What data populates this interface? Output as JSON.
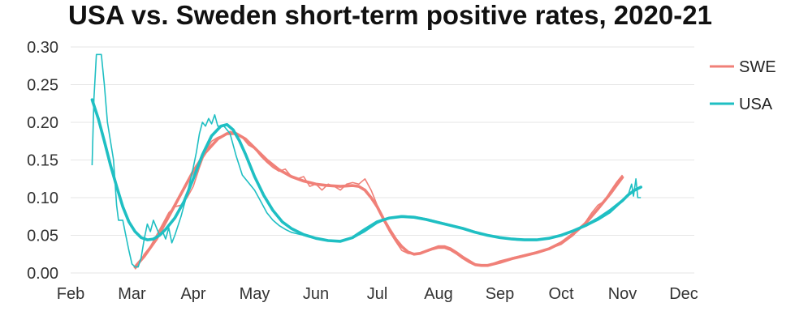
{
  "chart_data": {
    "type": "line",
    "title": "USA vs. Sweden short-term positive rates, 2020-21",
    "xlabel": "",
    "ylabel": "",
    "x_ticks": [
      "Feb",
      "Mar",
      "Apr",
      "May",
      "Jun",
      "Jul",
      "Aug",
      "Sep",
      "Oct",
      "Nov",
      "Dec"
    ],
    "x_range": [
      0,
      10
    ],
    "y_ticks": [
      "0.00",
      "0.05",
      "0.10",
      "0.15",
      "0.20",
      "0.25",
      "0.30"
    ],
    "ylim": [
      0,
      0.3
    ],
    "grid": "horizontal",
    "legend": {
      "placement": "right",
      "entries": [
        "SWE",
        "USA"
      ]
    },
    "series": [
      {
        "name": "SWE",
        "color": "#F08078",
        "raw": [
          [
            1.05,
            0.005
          ],
          [
            1.1,
            0.01
          ],
          [
            1.2,
            0.025
          ],
          [
            1.3,
            0.035
          ],
          [
            1.4,
            0.05
          ],
          [
            1.5,
            0.065
          ],
          [
            1.6,
            0.08
          ],
          [
            1.7,
            0.088
          ],
          [
            1.8,
            0.09
          ],
          [
            1.9,
            0.1
          ],
          [
            2.0,
            0.115
          ],
          [
            2.1,
            0.14
          ],
          [
            2.2,
            0.162
          ],
          [
            2.3,
            0.175
          ],
          [
            2.4,
            0.18
          ],
          [
            2.5,
            0.183
          ],
          [
            2.6,
            0.188
          ],
          [
            2.7,
            0.185
          ],
          [
            2.8,
            0.18
          ],
          [
            2.9,
            0.17
          ],
          [
            3.0,
            0.165
          ],
          [
            3.1,
            0.155
          ],
          [
            3.2,
            0.147
          ],
          [
            3.3,
            0.14
          ],
          [
            3.4,
            0.135
          ],
          [
            3.5,
            0.138
          ],
          [
            3.6,
            0.128
          ],
          [
            3.7,
            0.125
          ],
          [
            3.8,
            0.128
          ],
          [
            3.9,
            0.115
          ],
          [
            4.0,
            0.118
          ],
          [
            4.1,
            0.11
          ],
          [
            4.2,
            0.118
          ],
          [
            4.3,
            0.115
          ],
          [
            4.4,
            0.11
          ],
          [
            4.5,
            0.118
          ],
          [
            4.6,
            0.12
          ],
          [
            4.7,
            0.118
          ],
          [
            4.8,
            0.125
          ],
          [
            4.9,
            0.11
          ],
          [
            5.0,
            0.09
          ],
          [
            5.1,
            0.07
          ],
          [
            5.2,
            0.055
          ],
          [
            5.3,
            0.042
          ],
          [
            5.4,
            0.03
          ],
          [
            5.5,
            0.026
          ],
          [
            5.6,
            0.025
          ],
          [
            5.7,
            0.027
          ],
          [
            5.8,
            0.03
          ],
          [
            5.9,
            0.033
          ],
          [
            6.0,
            0.036
          ],
          [
            6.1,
            0.036
          ],
          [
            6.2,
            0.033
          ],
          [
            6.3,
            0.028
          ],
          [
            6.4,
            0.022
          ],
          [
            6.5,
            0.017
          ],
          [
            6.6,
            0.012
          ],
          [
            6.7,
            0.01
          ],
          [
            6.8,
            0.011
          ],
          [
            6.9,
            0.013
          ],
          [
            7.0,
            0.016
          ],
          [
            7.2,
            0.02
          ],
          [
            7.4,
            0.024
          ],
          [
            7.6,
            0.028
          ],
          [
            7.8,
            0.032
          ],
          [
            8.0,
            0.038
          ],
          [
            8.2,
            0.05
          ],
          [
            8.4,
            0.068
          ],
          [
            8.5,
            0.08
          ],
          [
            8.6,
            0.09
          ],
          [
            8.7,
            0.095
          ],
          [
            8.8,
            0.108
          ],
          [
            8.9,
            0.12
          ],
          [
            9.0,
            0.13
          ]
        ],
        "smooth": [
          [
            1.05,
            0.008
          ],
          [
            1.2,
            0.022
          ],
          [
            1.4,
            0.045
          ],
          [
            1.6,
            0.075
          ],
          [
            1.8,
            0.105
          ],
          [
            2.0,
            0.135
          ],
          [
            2.2,
            0.16
          ],
          [
            2.4,
            0.178
          ],
          [
            2.55,
            0.185
          ],
          [
            2.7,
            0.185
          ],
          [
            2.85,
            0.178
          ],
          [
            3.0,
            0.166
          ],
          [
            3.2,
            0.15
          ],
          [
            3.4,
            0.137
          ],
          [
            3.6,
            0.128
          ],
          [
            3.8,
            0.122
          ],
          [
            4.0,
            0.118
          ],
          [
            4.2,
            0.116
          ],
          [
            4.4,
            0.115
          ],
          [
            4.6,
            0.116
          ],
          [
            4.7,
            0.115
          ],
          [
            4.8,
            0.11
          ],
          [
            4.9,
            0.1
          ],
          [
            5.0,
            0.088
          ],
          [
            5.1,
            0.072
          ],
          [
            5.2,
            0.058
          ],
          [
            5.3,
            0.045
          ],
          [
            5.4,
            0.035
          ],
          [
            5.5,
            0.028
          ],
          [
            5.6,
            0.025
          ],
          [
            5.7,
            0.026
          ],
          [
            5.8,
            0.029
          ],
          [
            5.9,
            0.032
          ],
          [
            6.0,
            0.034
          ],
          [
            6.1,
            0.034
          ],
          [
            6.2,
            0.031
          ],
          [
            6.3,
            0.026
          ],
          [
            6.4,
            0.02
          ],
          [
            6.5,
            0.015
          ],
          [
            6.6,
            0.011
          ],
          [
            6.7,
            0.01
          ],
          [
            6.8,
            0.01
          ],
          [
            7.0,
            0.014
          ],
          [
            7.2,
            0.019
          ],
          [
            7.4,
            0.023
          ],
          [
            7.6,
            0.027
          ],
          [
            7.8,
            0.032
          ],
          [
            8.0,
            0.04
          ],
          [
            8.2,
            0.052
          ],
          [
            8.4,
            0.066
          ],
          [
            8.6,
            0.085
          ],
          [
            8.8,
            0.105
          ],
          [
            9.0,
            0.127
          ]
        ]
      },
      {
        "name": "USA",
        "color": "#1FBFC3",
        "raw": [
          [
            0.35,
            0.143
          ],
          [
            0.38,
            0.232
          ],
          [
            0.42,
            0.29
          ],
          [
            0.5,
            0.29
          ],
          [
            0.55,
            0.25
          ],
          [
            0.6,
            0.2
          ],
          [
            0.7,
            0.15
          ],
          [
            0.75,
            0.09
          ],
          [
            0.78,
            0.07
          ],
          [
            0.85,
            0.07
          ],
          [
            0.9,
            0.05
          ],
          [
            0.95,
            0.03
          ],
          [
            1.0,
            0.012
          ],
          [
            1.05,
            0.008
          ],
          [
            1.1,
            0.008
          ],
          [
            1.15,
            0.02
          ],
          [
            1.2,
            0.045
          ],
          [
            1.25,
            0.065
          ],
          [
            1.3,
            0.055
          ],
          [
            1.35,
            0.07
          ],
          [
            1.4,
            0.06
          ],
          [
            1.45,
            0.05
          ],
          [
            1.5,
            0.055
          ],
          [
            1.55,
            0.045
          ],
          [
            1.6,
            0.06
          ],
          [
            1.65,
            0.04
          ],
          [
            1.7,
            0.05
          ],
          [
            1.8,
            0.075
          ],
          [
            1.9,
            0.105
          ],
          [
            2.0,
            0.14
          ],
          [
            2.05,
            0.16
          ],
          [
            2.1,
            0.185
          ],
          [
            2.15,
            0.2
          ],
          [
            2.2,
            0.195
          ],
          [
            2.25,
            0.205
          ],
          [
            2.3,
            0.198
          ],
          [
            2.35,
            0.21
          ],
          [
            2.4,
            0.195
          ],
          [
            2.5,
            0.195
          ],
          [
            2.6,
            0.185
          ],
          [
            2.7,
            0.155
          ],
          [
            2.8,
            0.13
          ],
          [
            2.9,
            0.12
          ],
          [
            3.0,
            0.11
          ],
          [
            3.1,
            0.095
          ],
          [
            3.2,
            0.08
          ],
          [
            3.3,
            0.07
          ],
          [
            3.4,
            0.063
          ],
          [
            3.5,
            0.058
          ],
          [
            3.6,
            0.054
          ],
          [
            3.8,
            0.05
          ],
          [
            4.0,
            0.046
          ],
          [
            4.2,
            0.043
          ],
          [
            4.4,
            0.042
          ],
          [
            4.6,
            0.046
          ],
          [
            4.8,
            0.055
          ],
          [
            5.0,
            0.066
          ],
          [
            5.2,
            0.073
          ],
          [
            5.4,
            0.076
          ],
          [
            5.6,
            0.075
          ],
          [
            5.8,
            0.072
          ],
          [
            6.0,
            0.068
          ],
          [
            6.2,
            0.064
          ],
          [
            6.4,
            0.06
          ],
          [
            6.6,
            0.055
          ],
          [
            6.8,
            0.05
          ],
          [
            7.0,
            0.047
          ],
          [
            7.2,
            0.045
          ],
          [
            7.4,
            0.044
          ],
          [
            7.6,
            0.044
          ],
          [
            7.8,
            0.046
          ],
          [
            8.0,
            0.05
          ],
          [
            8.2,
            0.056
          ],
          [
            8.4,
            0.062
          ],
          [
            8.6,
            0.07
          ],
          [
            8.8,
            0.08
          ],
          [
            9.0,
            0.095
          ],
          [
            9.1,
            0.105
          ],
          [
            9.15,
            0.118
          ],
          [
            9.18,
            0.102
          ],
          [
            9.22,
            0.125
          ],
          [
            9.25,
            0.1
          ],
          [
            9.3,
            0.1
          ]
        ],
        "smooth": [
          [
            0.35,
            0.23
          ],
          [
            0.45,
            0.205
          ],
          [
            0.55,
            0.175
          ],
          [
            0.65,
            0.143
          ],
          [
            0.75,
            0.115
          ],
          [
            0.85,
            0.088
          ],
          [
            0.95,
            0.068
          ],
          [
            1.05,
            0.055
          ],
          [
            1.15,
            0.047
          ],
          [
            1.25,
            0.044
          ],
          [
            1.35,
            0.045
          ],
          [
            1.45,
            0.05
          ],
          [
            1.55,
            0.058
          ],
          [
            1.7,
            0.073
          ],
          [
            1.85,
            0.095
          ],
          [
            2.0,
            0.125
          ],
          [
            2.15,
            0.157
          ],
          [
            2.3,
            0.182
          ],
          [
            2.45,
            0.195
          ],
          [
            2.55,
            0.197
          ],
          [
            2.65,
            0.19
          ],
          [
            2.75,
            0.176
          ],
          [
            2.85,
            0.158
          ],
          [
            3.0,
            0.128
          ],
          [
            3.15,
            0.103
          ],
          [
            3.3,
            0.083
          ],
          [
            3.45,
            0.068
          ],
          [
            3.6,
            0.059
          ],
          [
            3.8,
            0.051
          ],
          [
            4.0,
            0.046
          ],
          [
            4.2,
            0.043
          ],
          [
            4.4,
            0.042
          ],
          [
            4.6,
            0.047
          ],
          [
            4.8,
            0.058
          ],
          [
            5.0,
            0.068
          ],
          [
            5.2,
            0.073
          ],
          [
            5.4,
            0.075
          ],
          [
            5.6,
            0.074
          ],
          [
            5.8,
            0.071
          ],
          [
            6.0,
            0.067
          ],
          [
            6.2,
            0.063
          ],
          [
            6.4,
            0.059
          ],
          [
            6.6,
            0.054
          ],
          [
            6.8,
            0.05
          ],
          [
            7.0,
            0.047
          ],
          [
            7.2,
            0.045
          ],
          [
            7.4,
            0.044
          ],
          [
            7.6,
            0.044
          ],
          [
            7.8,
            0.046
          ],
          [
            8.0,
            0.05
          ],
          [
            8.2,
            0.056
          ],
          [
            8.4,
            0.063
          ],
          [
            8.6,
            0.072
          ],
          [
            8.8,
            0.083
          ],
          [
            9.0,
            0.096
          ],
          [
            9.1,
            0.104
          ],
          [
            9.2,
            0.11
          ],
          [
            9.3,
            0.114
          ]
        ]
      }
    ]
  }
}
